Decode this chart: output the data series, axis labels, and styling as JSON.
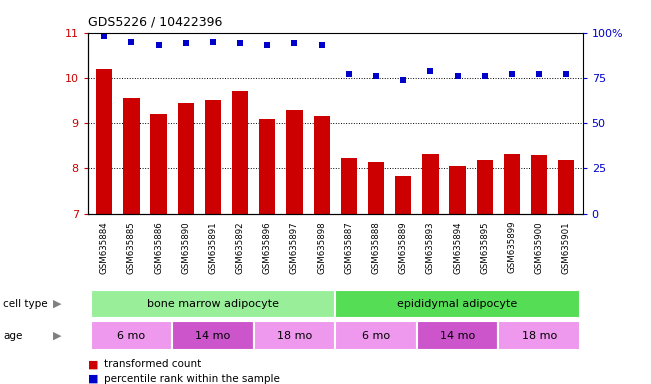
{
  "title": "GDS5226 / 10422396",
  "samples": [
    "GSM635884",
    "GSM635885",
    "GSM635886",
    "GSM635890",
    "GSM635891",
    "GSM635892",
    "GSM635896",
    "GSM635897",
    "GSM635898",
    "GSM635887",
    "GSM635888",
    "GSM635889",
    "GSM635893",
    "GSM635894",
    "GSM635895",
    "GSM635899",
    "GSM635900",
    "GSM635901"
  ],
  "bar_values": [
    10.2,
    9.55,
    9.2,
    9.45,
    9.5,
    9.7,
    9.1,
    9.28,
    9.15,
    8.22,
    8.15,
    7.82,
    8.32,
    8.05,
    8.18,
    8.32,
    8.3,
    8.18
  ],
  "dot_values": [
    98,
    95,
    93,
    94,
    95,
    94,
    93,
    94,
    93,
    77,
    76,
    74,
    79,
    76,
    76,
    77,
    77,
    77
  ],
  "bar_color": "#cc0000",
  "dot_color": "#0000cc",
  "ylim_left": [
    7,
    11
  ],
  "ylim_right": [
    0,
    100
  ],
  "yticks_left": [
    7,
    8,
    9,
    10,
    11
  ],
  "yticks_right": [
    0,
    25,
    50,
    75,
    100
  ],
  "ytick_labels_right": [
    "0",
    "25",
    "50",
    "75",
    "100%"
  ],
  "grid_values": [
    8,
    9,
    10
  ],
  "cell_type_groups": [
    {
      "label": "bone marrow adipocyte",
      "start": 0,
      "end": 9,
      "color": "#99ee99"
    },
    {
      "label": "epididymal adipocyte",
      "start": 9,
      "end": 18,
      "color": "#55dd55"
    }
  ],
  "age_color_light": "#ee99ee",
  "age_color_dark": "#cc55cc",
  "age_groups": [
    {
      "label": "6 mo",
      "start": 0,
      "end": 3,
      "dark": false
    },
    {
      "label": "14 mo",
      "start": 3,
      "end": 6,
      "dark": true
    },
    {
      "label": "18 mo",
      "start": 6,
      "end": 9,
      "dark": false
    },
    {
      "label": "6 mo",
      "start": 9,
      "end": 12,
      "dark": false
    },
    {
      "label": "14 mo",
      "start": 12,
      "end": 15,
      "dark": true
    },
    {
      "label": "18 mo",
      "start": 15,
      "end": 18,
      "dark": false
    }
  ],
  "legend_items": [
    {
      "label": "transformed count",
      "color": "#cc0000"
    },
    {
      "label": "percentile rank within the sample",
      "color": "#0000cc"
    }
  ],
  "cell_type_label": "cell type",
  "age_label": "age",
  "bar_width": 0.6,
  "sample_bg": "#cccccc",
  "background_color": "#ffffff"
}
